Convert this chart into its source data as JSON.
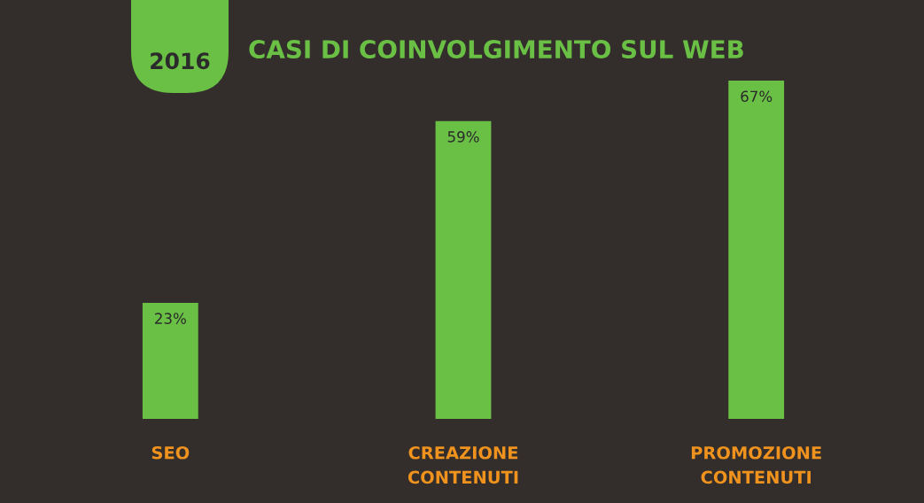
{
  "chart_data": {
    "type": "bar",
    "title": "CASI DI COINVOLGIMENTO SUL WEB",
    "subtitle": "2016",
    "categories": [
      "SEO",
      "CREAZIONE\nCONTENUTI",
      "PROMOZIONE\nCONTENUTI"
    ],
    "values": [
      23,
      59,
      67
    ],
    "value_labels": [
      "23%",
      "59%",
      "67%"
    ],
    "color": "#6abf45",
    "grid": false,
    "legend": false,
    "tick_labels": "x"
  }
}
